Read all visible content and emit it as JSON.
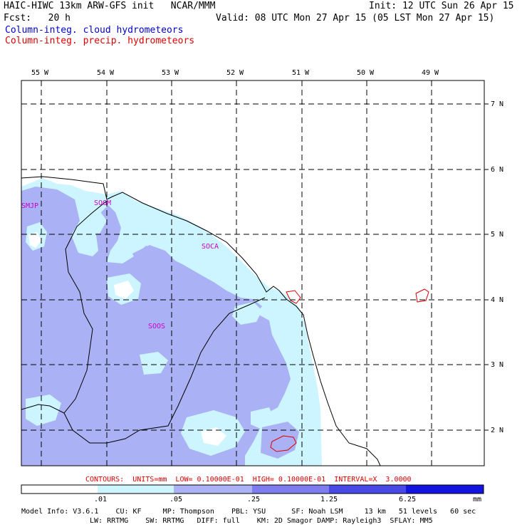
{
  "header": {
    "title_left": "HAIC-HIWC 13km ARW-GFS init   NCAR/MMM",
    "init": "Init: 12 UTC Sun 26 Apr 15",
    "fcst": "Fcst:   20 h",
    "valid": "Valid: 08 UTC Mon 27 Apr 15 (05 LST Mon 27 Apr 15)",
    "legend_cloud": "Column-integ. cloud hydrometeors",
    "legend_precip": "Column-integ. precip. hydrometeors",
    "legend_cloud_color": "#0000cc",
    "legend_precip_color": "#dd0000"
  },
  "map": {
    "lon_labels": [
      "55 W",
      "54 W",
      "53 W",
      "52 W",
      "51 W",
      "50 W",
      "49 W"
    ],
    "lat_labels": [
      "7 N",
      "6 N",
      "5 N",
      "4 N",
      "3 N",
      "2 N"
    ],
    "stations": [
      "SMJP",
      "SOGM",
      "SOCA",
      "SOOS"
    ],
    "station_color": "#cc00cc",
    "precip_contour_color": "#dd0000"
  },
  "contour_info": "CONTOURS:  UNITS=mm  LOW= 0.10000E-01  HIGH= 0.10000E-01  INTERVAL=X  3.0000",
  "colorbar": {
    "ticks": [
      ".01",
      ".05",
      ".25",
      "1.25",
      "6.25"
    ],
    "unit": "mm",
    "colors": [
      "#ffffff",
      "#ccf5ff",
      "#aab2f5",
      "#7d7df0",
      "#4848e6",
      "#1414e0"
    ]
  },
  "model_info": {
    "line1": "Model Info: V3.6.1    CU: KF     MP: Thompson    PBL: YSU      SF: Noah LSM     13 km   51 levels   60 sec",
    "line2": "LW: RRTMG    SW: RRTMG   DIFF: full    KM: 2D Smagor DAMP: Rayleigh3  SFLAY: MM5"
  }
}
